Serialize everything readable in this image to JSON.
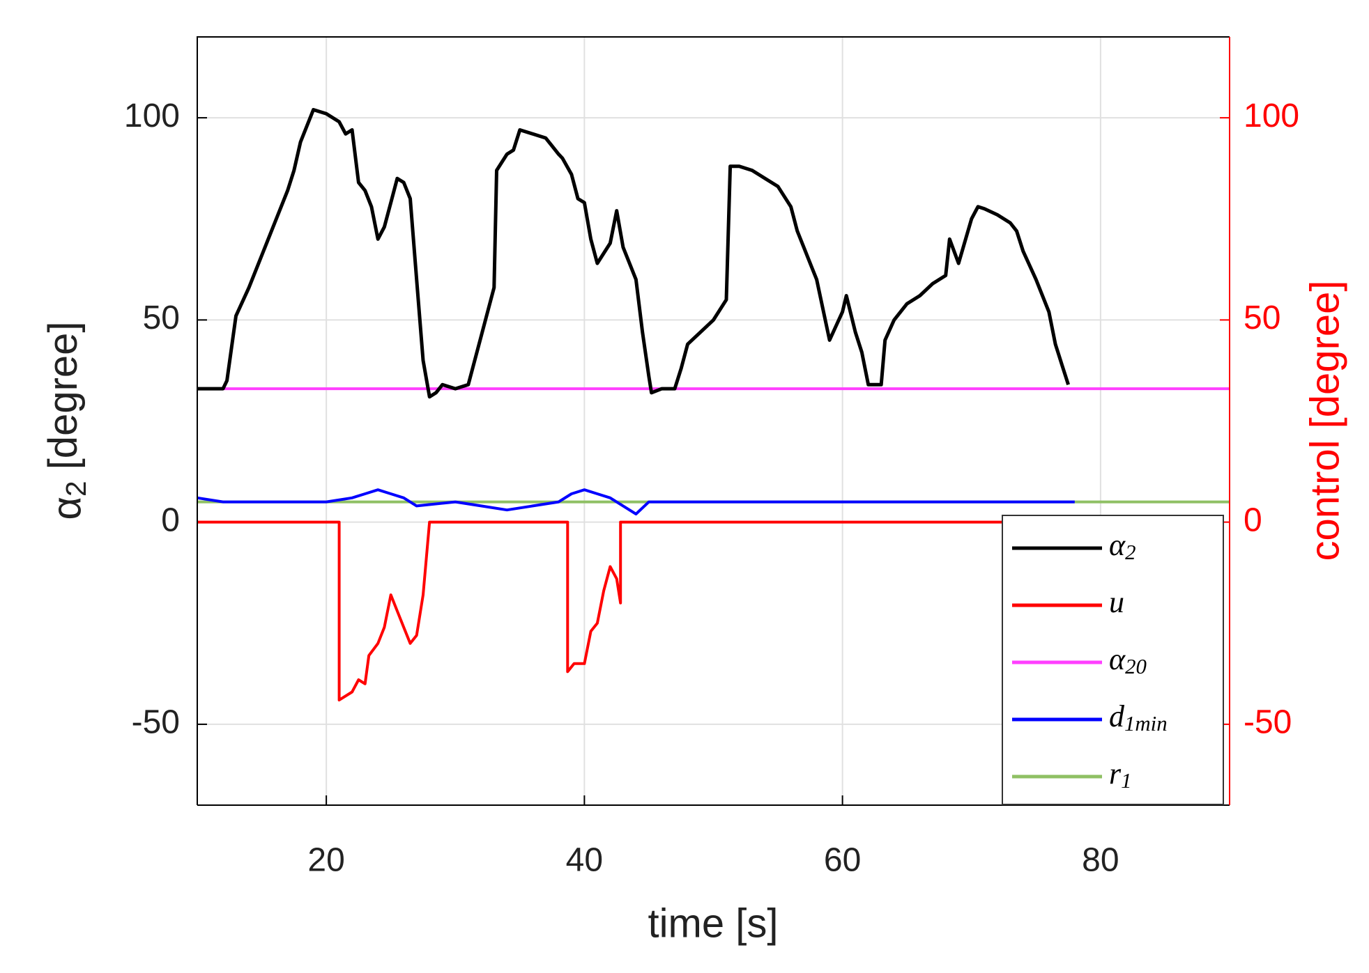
{
  "chart_data": {
    "type": "line",
    "xlabel": "time [s]",
    "ylabel": "α2 [degree]",
    "y2label": "control [degree]",
    "xlim": [
      10,
      90
    ],
    "xticks": [
      20,
      40,
      60,
      80
    ],
    "ylim": [
      -70,
      120
    ],
    "yticks": [
      -50,
      0,
      50,
      100
    ],
    "y2lim": [
      -70,
      120
    ],
    "y2ticks": [
      -50,
      0,
      50,
      100
    ],
    "grid": true,
    "legend": "lower right",
    "series": [
      {
        "name": "α2",
        "color": "#000000",
        "x": [
          10,
          12,
          12.3,
          13,
          14,
          15,
          16,
          17,
          17.5,
          18,
          19,
          20,
          21,
          21.5,
          22,
          22.5,
          23,
          23.5,
          24,
          24.5,
          25,
          25.5,
          26,
          26.5,
          27,
          27.5,
          28,
          28.5,
          29,
          30,
          31,
          32,
          33,
          33.2,
          34,
          34.5,
          35,
          36,
          37,
          37.5,
          38,
          38.3,
          39,
          39.5,
          40,
          40.5,
          41,
          42,
          42.5,
          43,
          44,
          44.5,
          45,
          45.2,
          46,
          47,
          47.5,
          48,
          50,
          51,
          51.3,
          52,
          53,
          54,
          55,
          56,
          56.5,
          57,
          57.5,
          58,
          59,
          60,
          60.3,
          61,
          61.5,
          62,
          63,
          63.3,
          64,
          65,
          66,
          67,
          68,
          68.3,
          69,
          70,
          70.5,
          71,
          72,
          73,
          73.5,
          74,
          75,
          76,
          76.5,
          77,
          77.5
        ],
        "values": [
          33,
          33,
          35,
          51,
          58,
          66,
          74,
          82,
          87,
          94,
          102,
          101,
          99,
          96,
          97,
          84,
          82,
          78,
          70,
          73,
          79,
          85,
          84,
          80,
          60,
          40,
          31,
          32,
          34,
          33,
          34,
          46,
          58,
          87,
          91,
          92,
          97,
          96,
          95,
          93,
          91,
          90,
          86,
          80,
          79,
          70,
          64,
          69,
          77,
          68,
          60,
          47,
          36,
          32,
          33,
          33,
          38,
          44,
          50,
          55,
          88,
          88,
          87,
          85,
          83,
          78,
          72,
          68,
          64,
          60,
          45,
          52,
          56,
          47,
          42,
          34,
          34,
          45,
          50,
          54,
          56,
          59,
          61,
          70,
          64,
          75,
          78,
          77.5,
          76,
          74,
          72,
          67,
          60,
          52,
          44,
          39,
          34
        ]
      },
      {
        "name": "u",
        "color": "#ff0000",
        "axis": "y2",
        "x": [
          10,
          21,
          21,
          22,
          22.5,
          23,
          23.3,
          24,
          24.5,
          25,
          25.5,
          26,
          26.5,
          27,
          27.5,
          28,
          38.7,
          38.7,
          39.2,
          40,
          40.5,
          41,
          41.5,
          42,
          42.5,
          42.8,
          42.8,
          78
        ],
        "values": [
          0,
          0,
          -44,
          -42,
          -39,
          -40,
          -33,
          -30,
          -26,
          -18,
          -22,
          -26,
          -30,
          -28,
          -18,
          0,
          0,
          -37,
          -35,
          -35,
          -27,
          -25,
          -17,
          -11,
          -14,
          -20,
          0,
          0
        ]
      },
      {
        "name": "α20",
        "color": "#ff40ff",
        "x": [
          10,
          90
        ],
        "values": [
          33,
          33
        ]
      },
      {
        "name": "d1min",
        "color": "#0000ff",
        "x": [
          10,
          12,
          16,
          20,
          22,
          23,
          24,
          25,
          26,
          27,
          30,
          32,
          34,
          36,
          38,
          39,
          40,
          41,
          42,
          43,
          44,
          45,
          50,
          55,
          60,
          65,
          70,
          75,
          78
        ],
        "values": [
          6,
          5,
          5,
          5,
          6,
          7,
          8,
          7,
          6,
          4,
          5,
          4,
          3,
          4,
          5,
          7,
          8,
          7,
          6,
          4,
          2,
          5,
          5,
          5,
          5,
          5,
          5,
          5,
          5
        ]
      },
      {
        "name": "r1",
        "color": "#8fc064",
        "x": [
          10,
          90
        ],
        "values": [
          5,
          5
        ]
      }
    ]
  }
}
